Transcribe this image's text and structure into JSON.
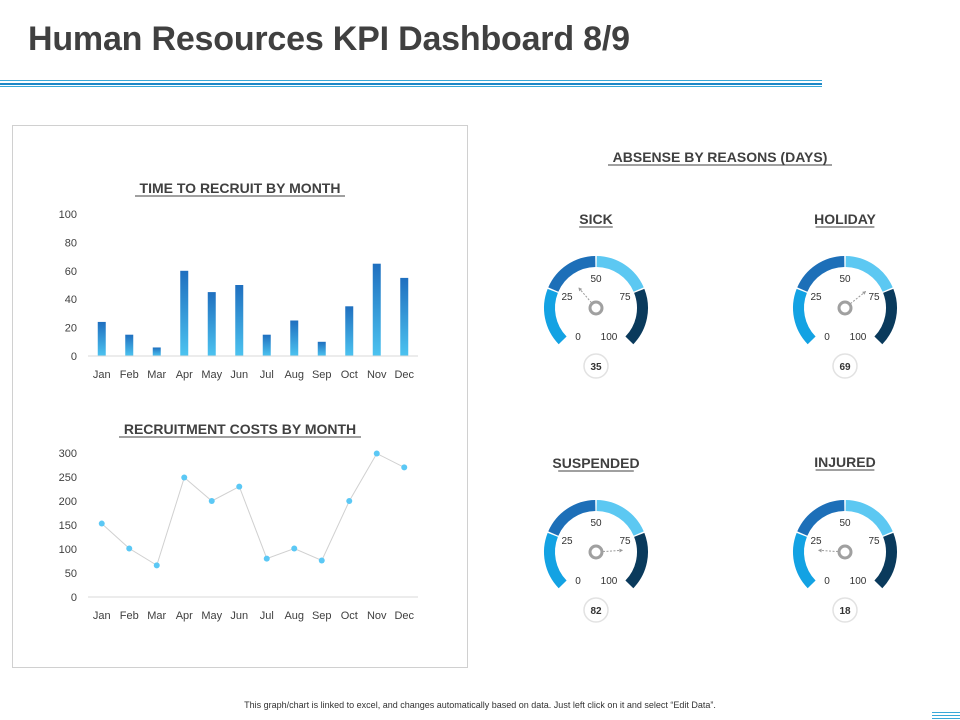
{
  "header": {
    "title": "Human Resources KPI Dashboard 8/9"
  },
  "footer": {
    "note": "This graph/chart is linked to excel, and changes automatically based on data. Just left click on it and select “Edit Data”."
  },
  "colors": {
    "accent": "#1e88c7",
    "bar_top": "#1f6fbf",
    "bar_bottom": "#4cc3f0",
    "line": "#d0d0d0",
    "marker": "#5bc8f5",
    "gauge_seg1": "#13a2e3",
    "gauge_seg2": "#1d6fb8",
    "gauge_seg3": "#5cc8f2",
    "gauge_seg4": "#0a3a5c"
  },
  "chart_data": [
    {
      "type": "bar",
      "title": "TIME TO RECRUIT BY MONTH",
      "categories": [
        "Jan",
        "Feb",
        "Mar",
        "Apr",
        "May",
        "Jun",
        "Jul",
        "Aug",
        "Sep",
        "Oct",
        "Nov",
        "Dec"
      ],
      "values": [
        24,
        15,
        6,
        60,
        45,
        50,
        15,
        25,
        10,
        35,
        65,
        55
      ],
      "yticks": [
        "0",
        "20",
        "40",
        "60",
        "80",
        "100"
      ],
      "ylim": [
        0,
        100
      ],
      "grid": false
    },
    {
      "type": "line",
      "title": "RECRUITMENT  COSTS BY MONTH",
      "categories": [
        "Jan",
        "Feb",
        "Mar",
        "Apr",
        "May",
        "Jun",
        "Jul",
        "Aug",
        "Sep",
        "Oct",
        "Nov",
        "Dec"
      ],
      "values": [
        153,
        101,
        66,
        249,
        200,
        230,
        80,
        101,
        76,
        200,
        299,
        270
      ],
      "yticks": [
        "0",
        "50",
        "100",
        "150",
        "200",
        "250",
        "300"
      ],
      "ylim": [
        0,
        300
      ],
      "grid": false
    },
    {
      "type": "gauge",
      "title": "ABSENSE BY REASONS (DAYS)",
      "scale_labels": [
        "0",
        "25",
        "50",
        "75",
        "100"
      ],
      "range": [
        0,
        100
      ],
      "gauges": [
        {
          "label": "SICK",
          "value": 35,
          "value_text": "35"
        },
        {
          "label": "HOLIDAY",
          "value": 69,
          "value_text": "69"
        },
        {
          "label": "SUSPENDED",
          "value": 82,
          "value_text": "82"
        },
        {
          "label": "INJURED",
          "value": 18,
          "value_text": "18"
        }
      ]
    }
  ]
}
